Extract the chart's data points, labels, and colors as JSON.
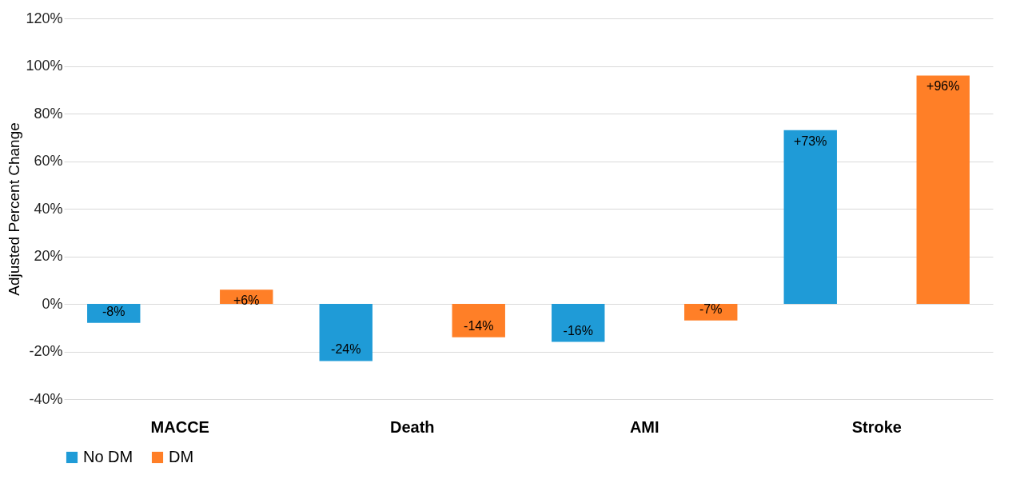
{
  "chart_data": {
    "type": "bar",
    "ylabel": "Adjusted Percent Change",
    "categories": [
      "MACCE",
      "Death",
      "AMI",
      "Stroke"
    ],
    "series": [
      {
        "name": "No DM",
        "color": "#1f9bd7",
        "values": [
          -8,
          -24,
          -16,
          73
        ],
        "value_labels": [
          "-8%",
          "-24%",
          "-16%",
          "+73%"
        ]
      },
      {
        "name": "DM",
        "color": "#ff7f27",
        "values": [
          6,
          -14,
          -7,
          96
        ],
        "value_labels": [
          "+6%",
          "-14%",
          "-7%",
          "+96%"
        ]
      }
    ],
    "ylim": [
      -40,
      120
    ],
    "yticks": [
      {
        "value": -40,
        "label": "-40%"
      },
      {
        "value": -20,
        "label": "-20%"
      },
      {
        "value": 0,
        "label": "0%"
      },
      {
        "value": 20,
        "label": "20%"
      },
      {
        "value": 40,
        "label": "40%"
      },
      {
        "value": 60,
        "label": "60%"
      },
      {
        "value": 80,
        "label": "80%"
      },
      {
        "value": 100,
        "label": "100%"
      },
      {
        "value": 120,
        "label": "120%"
      }
    ],
    "grid": "y",
    "legend": "bottom"
  }
}
